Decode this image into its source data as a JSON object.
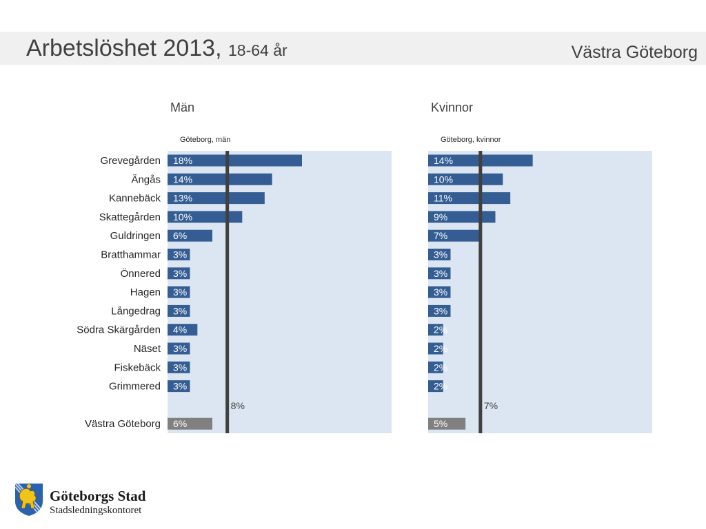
{
  "header": {
    "title": "Arbetslöshet 2013,",
    "subtitle": "18-64 år",
    "region": "Västra Göteborg"
  },
  "chart_data": [
    {
      "type": "bar",
      "title": "Män",
      "reference_label": "Göteborg, män",
      "reference_value": 8,
      "reference_value_label": "8%",
      "categories": [
        "Grevegården",
        "Ängås",
        "Kannebäck",
        "Skattegården",
        "Guldringen",
        "Bratthammar",
        "Önnered",
        "Hagen",
        "Långedrag",
        "Södra Skärgården",
        "Näset",
        "Fiskebäck",
        "Grimmered"
      ],
      "values": [
        18,
        14,
        13,
        10,
        6,
        3,
        3,
        3,
        3,
        4,
        3,
        3,
        3
      ],
      "value_labels": [
        "18%",
        "14%",
        "13%",
        "10%",
        "6%",
        "3%",
        "3%",
        "3%",
        "3%",
        "4%",
        "3%",
        "3%",
        "3%"
      ],
      "total_category": "Västra Göteborg",
      "total_value": 6,
      "total_value_label": "6%",
      "xlim": [
        0,
        30
      ],
      "bar_color": "#345d93",
      "total_color": "#808080",
      "background_color": "#dce6f2"
    },
    {
      "type": "bar",
      "title": "Kvinnor",
      "reference_label": "Göteborg, kvinnor",
      "reference_value": 7,
      "reference_value_label": "7%",
      "categories": [
        "Grevegården",
        "Ängås",
        "Kannebäck",
        "Skattegården",
        "Guldringen",
        "Bratthammar",
        "Önnered",
        "Hagen",
        "Långedrag",
        "Södra Skärgården",
        "Näset",
        "Fiskebäck",
        "Grimmered"
      ],
      "values": [
        14,
        10,
        11,
        9,
        7,
        3,
        3,
        3,
        3,
        2,
        2,
        2,
        2
      ],
      "value_labels": [
        "14%",
        "10%",
        "11%",
        "9%",
        "7%",
        "3%",
        "3%",
        "3%",
        "3%",
        "2%",
        "2%",
        "2%",
        "2%"
      ],
      "total_category": "Västra Göteborg",
      "total_value": 5,
      "total_value_label": "5%",
      "xlim": [
        0,
        30
      ],
      "bar_color": "#345d93",
      "total_color": "#808080",
      "background_color": "#dce6f2"
    }
  ],
  "footer": {
    "org_name": "Göteborgs Stad",
    "org_unit": "Stadsledningskontoret"
  },
  "icons": {
    "logo": "gothenburg-lion-crest-icon"
  }
}
